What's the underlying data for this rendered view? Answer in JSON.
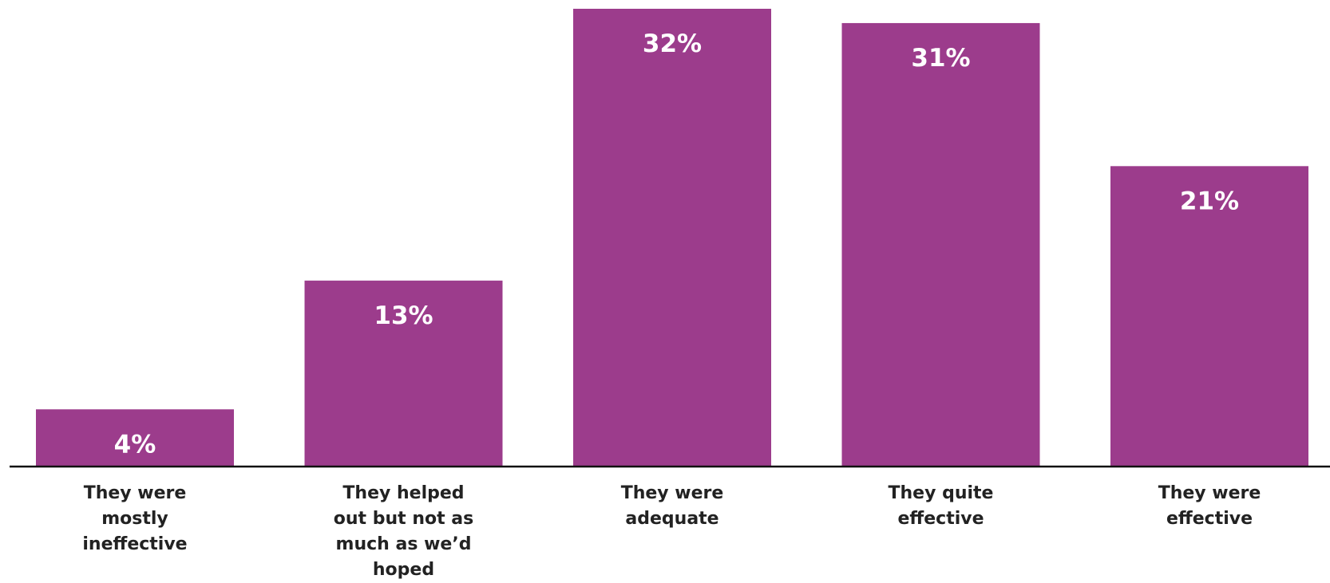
{
  "chart_data": {
    "type": "bar",
    "categories": [
      "They were\nmostly\nineffective",
      "They helped\nout but not as\nmuch as we’d\nhoped",
      "They were\nadequate",
      "They quite\neffective",
      "They were\neffective"
    ],
    "values": [
      4,
      13,
      32,
      31,
      21
    ],
    "data_labels": [
      "4%",
      "13%",
      "32%",
      "31%",
      "21%"
    ],
    "unit": "%",
    "ylim": [
      0,
      32
    ],
    "grid": false,
    "legend": "none",
    "colors": {
      "bar": "#9c3c8c",
      "axis": "#111111",
      "label_text": "#ffffff",
      "category_text": "#222222"
    }
  }
}
